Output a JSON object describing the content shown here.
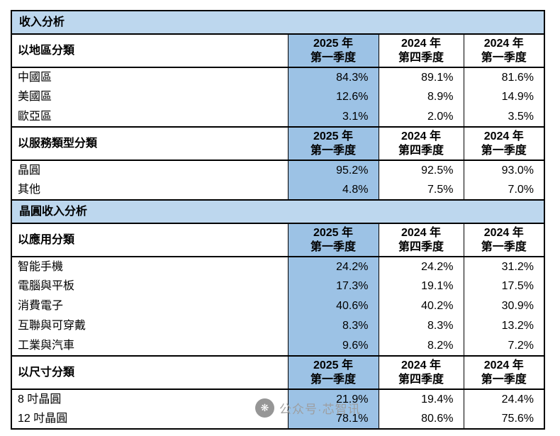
{
  "colors": {
    "section_title_bg": "#BDD7EE",
    "highlight_col_bg": "#9CC2E5",
    "border": "#000000"
  },
  "chart_data": {
    "type": "table",
    "column_headers": {
      "c1": "2025 年\n第一季度",
      "c2": "2024 年\n第四季度",
      "c3": "2024 年\n第一季度"
    },
    "sections": [
      {
        "title": "收入分析",
        "tables": [
          {
            "header_label": "以地區分類",
            "rows": [
              {
                "label": "中國區",
                "values": [
                  "84.3%",
                  "89.1%",
                  "81.6%"
                ]
              },
              {
                "label": "美國區",
                "values": [
                  "12.6%",
                  "8.9%",
                  "14.9%"
                ]
              },
              {
                "label": "歐亞區",
                "values": [
                  "3.1%",
                  "2.0%",
                  "3.5%"
                ]
              }
            ]
          },
          {
            "header_label": "以服務類型分類",
            "rows": [
              {
                "label": "晶圓",
                "values": [
                  "95.2%",
                  "92.5%",
                  "93.0%"
                ]
              },
              {
                "label": "其他",
                "values": [
                  "4.8%",
                  "7.5%",
                  "7.0%"
                ]
              }
            ]
          }
        ]
      },
      {
        "title": "晶圓收入分析",
        "tables": [
          {
            "header_label": "以應用分類",
            "rows": [
              {
                "label": "智能手機",
                "values": [
                  "24.2%",
                  "24.2%",
                  "31.2%"
                ]
              },
              {
                "label": "電腦與平板",
                "values": [
                  "17.3%",
                  "19.1%",
                  "17.5%"
                ]
              },
              {
                "label": "消費電子",
                "values": [
                  "40.6%",
                  "40.2%",
                  "30.9%"
                ]
              },
              {
                "label": "互聯與可穿戴",
                "values": [
                  "8.3%",
                  "8.3%",
                  "13.2%"
                ]
              },
              {
                "label": "工業與汽車",
                "values": [
                  "9.6%",
                  "8.2%",
                  "7.2%"
                ]
              }
            ]
          },
          {
            "header_label": "以尺寸分類",
            "rows": [
              {
                "label": "8 吋晶圓",
                "values": [
                  "21.9%",
                  "19.4%",
                  "24.4%"
                ]
              },
              {
                "label": "12 吋晶圓",
                "values": [
                  "78.1%",
                  "80.6%",
                  "75.6%"
                ]
              }
            ]
          }
        ]
      }
    ]
  },
  "watermark": {
    "logo_glyph": "❋",
    "text": "公众号·芯智讯"
  }
}
